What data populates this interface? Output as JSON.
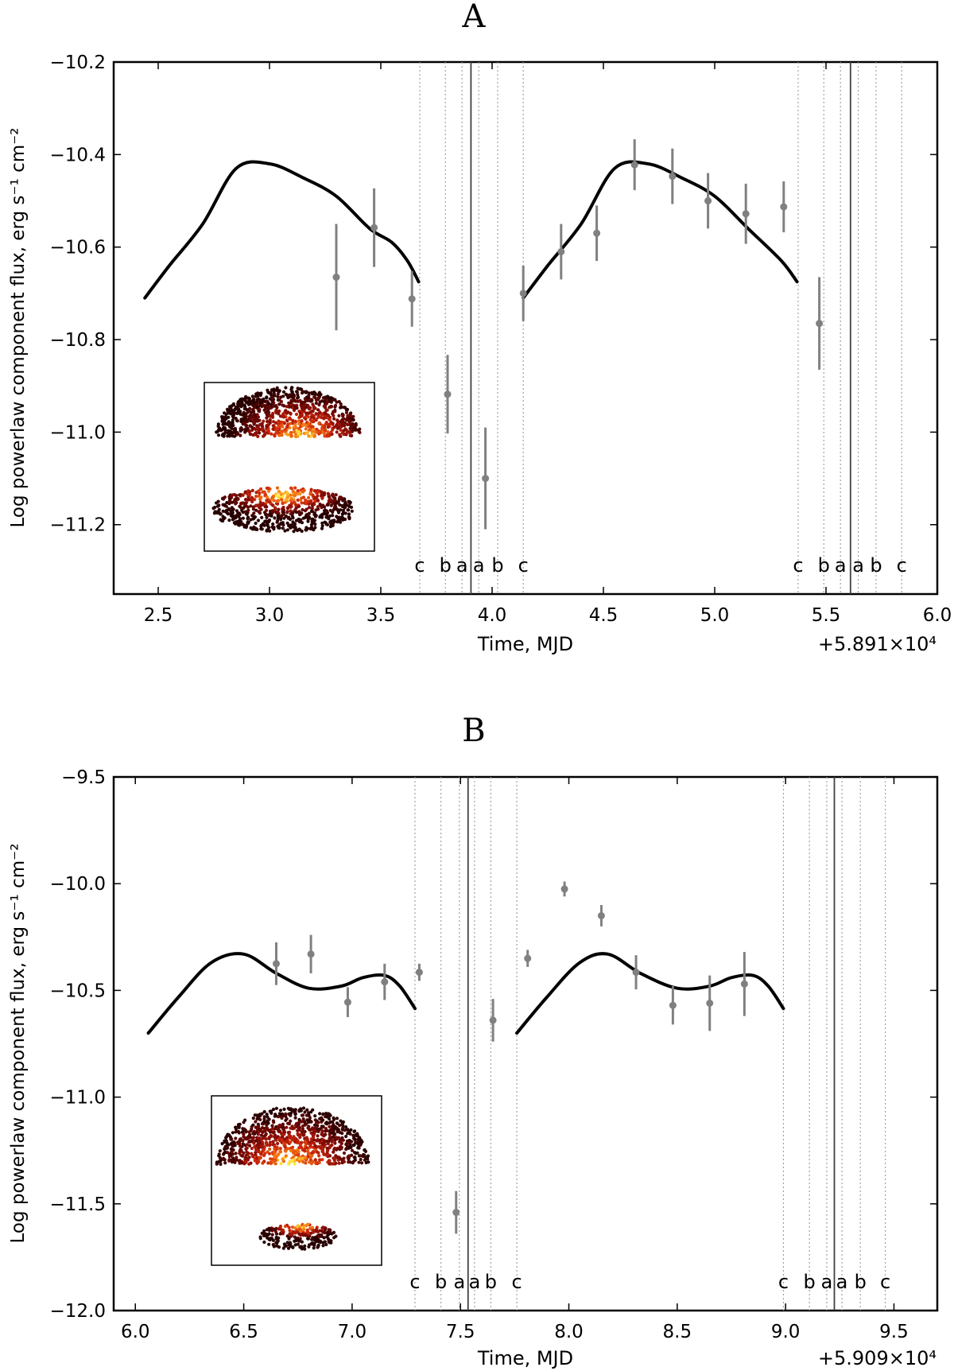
{
  "chart_data": [
    {
      "id": "A",
      "type": "scatter",
      "title": "A",
      "xlabel": "Time, MJD",
      "ylabel": "Log powerlaw component flux, erg s⁻¹ cm⁻²",
      "offset_text": "+5.891×10⁴",
      "xlim": [
        2.3,
        6.0
      ],
      "ylim": [
        -11.35,
        -10.2
      ],
      "xticks": [
        2.5,
        3.0,
        3.5,
        4.0,
        4.5,
        5.0,
        5.5,
        6.0
      ],
      "xtick_labels": [
        "2.5",
        "3.0",
        "3.5",
        "4.0",
        "4.5",
        "5.0",
        "5.5",
        "6.0"
      ],
      "yticks": [
        -10.2,
        -10.4,
        -10.6,
        -10.8,
        -11.0,
        -11.2
      ],
      "ytick_labels": [
        "−10.2",
        "−10.4",
        "−10.6",
        "−10.8",
        "−11.0",
        "−11.2"
      ],
      "points": [
        {
          "x": 3.3,
          "y": -10.665,
          "err": 0.115
        },
        {
          "x": 3.47,
          "y": -10.558,
          "err": 0.085
        },
        {
          "x": 3.64,
          "y": -10.712,
          "err": 0.06
        },
        {
          "x": 3.8,
          "y": -10.918,
          "err": 0.085
        },
        {
          "x": 3.97,
          "y": -11.1,
          "err": 0.11
        },
        {
          "x": 4.14,
          "y": -10.7,
          "err": 0.06
        },
        {
          "x": 4.31,
          "y": -10.61,
          "err": 0.06
        },
        {
          "x": 4.47,
          "y": -10.57,
          "err": 0.06
        },
        {
          "x": 4.64,
          "y": -10.422,
          "err": 0.055
        },
        {
          "x": 4.81,
          "y": -10.447,
          "err": 0.06
        },
        {
          "x": 4.97,
          "y": -10.5,
          "err": 0.06
        },
        {
          "x": 5.14,
          "y": -10.528,
          "err": 0.065
        },
        {
          "x": 5.31,
          "y": -10.513,
          "err": 0.055
        },
        {
          "x": 5.47,
          "y": -10.765,
          "err": 0.1
        }
      ],
      "model_curves": [
        {
          "x": [
            2.44,
            2.55,
            2.7,
            2.85,
            3.0,
            3.15,
            3.3,
            3.45,
            3.55,
            3.62,
            3.67
          ],
          "y": [
            -10.71,
            -10.64,
            -10.55,
            -10.43,
            -10.42,
            -10.45,
            -10.49,
            -10.56,
            -10.59,
            -10.63,
            -10.675
          ]
        },
        {
          "x": [
            4.14,
            4.25,
            4.4,
            4.55,
            4.7,
            4.85,
            5.0,
            5.15,
            5.3,
            5.37
          ],
          "y": [
            -10.71,
            -10.64,
            -10.55,
            -10.43,
            -10.42,
            -10.45,
            -10.49,
            -10.56,
            -10.63,
            -10.675
          ]
        }
      ],
      "solid_lines": [
        3.905,
        5.61
      ],
      "dotted_lines": [
        3.675,
        3.79,
        3.865,
        3.94,
        4.025,
        4.14,
        5.375,
        5.49,
        5.565,
        5.645,
        5.725,
        5.84
      ],
      "region_labels": [
        {
          "x": 3.675,
          "text": "c"
        },
        {
          "x": 3.79,
          "text": "b"
        },
        {
          "x": 3.865,
          "text": "a"
        },
        {
          "x": 3.94,
          "text": "a"
        },
        {
          "x": 4.025,
          "text": "b"
        },
        {
          "x": 4.14,
          "text": "c"
        },
        {
          "x": 5.375,
          "text": "c"
        },
        {
          "x": 5.49,
          "text": "b"
        },
        {
          "x": 5.565,
          "text": "a"
        },
        {
          "x": 5.645,
          "text": "a"
        },
        {
          "x": 5.725,
          "text": "b"
        },
        {
          "x": 5.84,
          "text": "c"
        }
      ],
      "inset": {
        "image": "two heated hemisphere clouds (upper hot cap, lower elliptical blob)"
      }
    },
    {
      "id": "B",
      "type": "scatter",
      "title": "B",
      "xlabel": "Time, MJD",
      "ylabel": "Log powerlaw component flux, erg s⁻¹ cm⁻²",
      "offset_text": "+5.909×10⁴",
      "xlim": [
        5.9,
        9.7
      ],
      "ylim": [
        -12.0,
        -9.5
      ],
      "xticks": [
        6.0,
        6.5,
        7.0,
        7.5,
        8.0,
        8.5,
        9.0,
        9.5
      ],
      "xtick_labels": [
        "6.0",
        "6.5",
        "7.0",
        "7.5",
        "8.0",
        "8.5",
        "9.0",
        "9.5"
      ],
      "yticks": [
        -9.5,
        -10.0,
        -10.5,
        -11.0,
        -11.5,
        -12.0
      ],
      "ytick_labels": [
        "−9.5",
        "−10.0",
        "−10.5",
        "−11.0",
        "−11.5",
        "−12.0"
      ],
      "points": [
        {
          "x": 6.65,
          "y": -10.375,
          "err": 0.1
        },
        {
          "x": 6.81,
          "y": -10.33,
          "err": 0.09
        },
        {
          "x": 6.98,
          "y": -10.555,
          "err": 0.07
        },
        {
          "x": 7.15,
          "y": -10.46,
          "err": 0.085
        },
        {
          "x": 7.31,
          "y": -10.415,
          "err": 0.04
        },
        {
          "x": 7.48,
          "y": -11.54,
          "err": 0.1
        },
        {
          "x": 7.65,
          "y": -10.64,
          "err": 0.1
        },
        {
          "x": 7.81,
          "y": -10.35,
          "err": 0.04
        },
        {
          "x": 7.98,
          "y": -10.025,
          "err": 0.035
        },
        {
          "x": 8.15,
          "y": -10.15,
          "err": 0.05
        },
        {
          "x": 8.31,
          "y": -10.415,
          "err": 0.08
        },
        {
          "x": 8.48,
          "y": -10.57,
          "err": 0.09
        },
        {
          "x": 8.65,
          "y": -10.56,
          "err": 0.13
        },
        {
          "x": 8.81,
          "y": -10.47,
          "err": 0.15
        }
      ],
      "model_curves": [
        {
          "x": [
            6.06,
            6.2,
            6.35,
            6.5,
            6.65,
            6.8,
            6.95,
            7.05,
            7.15,
            7.22,
            7.29
          ],
          "y": [
            -10.7,
            -10.53,
            -10.37,
            -10.33,
            -10.42,
            -10.49,
            -10.48,
            -10.44,
            -10.43,
            -10.48,
            -10.585
          ]
        },
        {
          "x": [
            7.76,
            7.9,
            8.05,
            8.18,
            8.33,
            8.5,
            8.65,
            8.75,
            8.85,
            8.92,
            8.99
          ],
          "y": [
            -10.7,
            -10.53,
            -10.37,
            -10.33,
            -10.42,
            -10.49,
            -10.48,
            -10.44,
            -10.43,
            -10.48,
            -10.585
          ]
        }
      ],
      "solid_lines": [
        7.535,
        9.225
      ],
      "dotted_lines": [
        7.29,
        7.41,
        7.495,
        7.565,
        7.64,
        7.76,
        8.99,
        9.11,
        9.19,
        9.26,
        9.345,
        9.46
      ],
      "region_labels": [
        {
          "x": 7.29,
          "text": "c"
        },
        {
          "x": 7.41,
          "text": "b"
        },
        {
          "x": 7.495,
          "text": "a"
        },
        {
          "x": 7.565,
          "text": "a"
        },
        {
          "x": 7.64,
          "text": "b"
        },
        {
          "x": 7.76,
          "text": "c"
        },
        {
          "x": 8.99,
          "text": "c"
        },
        {
          "x": 9.11,
          "text": "b"
        },
        {
          "x": 9.19,
          "text": "a"
        },
        {
          "x": 9.26,
          "text": "a"
        },
        {
          "x": 9.345,
          "text": "b"
        },
        {
          "x": 9.46,
          "text": "c"
        }
      ],
      "inset": {
        "image": "two heated hemisphere clouds (upper hot cap, small lower blob)"
      }
    }
  ],
  "colors": {
    "axes": "#000000",
    "points": "#808080",
    "model": "#000000",
    "dotted": "#9a9a9a",
    "solid": "#404040"
  }
}
